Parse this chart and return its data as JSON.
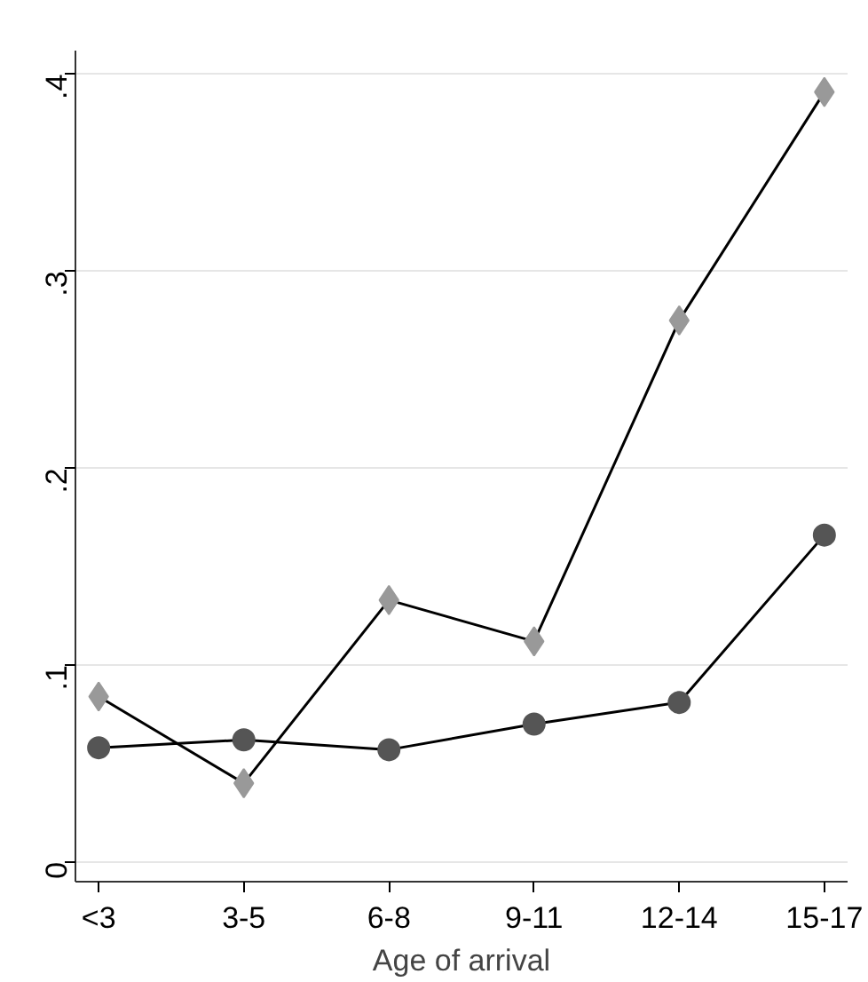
{
  "chart_data": {
    "type": "line",
    "xlabel": "Age of arrival",
    "categories": [
      "<3",
      "3-5",
      "6-8",
      "9-11",
      "12-14",
      "15-17"
    ],
    "ylim": [
      -0.01,
      0.412
    ],
    "yticks": [
      {
        "value": 0,
        "label": "0"
      },
      {
        "value": 0.1,
        "label": ".1"
      },
      {
        "value": 0.2,
        "label": ".2"
      },
      {
        "value": 0.3,
        "label": ".3"
      },
      {
        "value": 0.4,
        "label": ".4"
      }
    ],
    "grid": "y",
    "series": [
      {
        "color": "#999999",
        "marker": "diamond",
        "values": [
          0.084,
          0.04,
          0.133,
          0.112,
          0.275,
          0.391
        ]
      },
      {
        "color": "#555555",
        "marker": "circle",
        "values": [
          0.058,
          0.062,
          0.057,
          0.07,
          0.081,
          0.166
        ]
      }
    ]
  }
}
